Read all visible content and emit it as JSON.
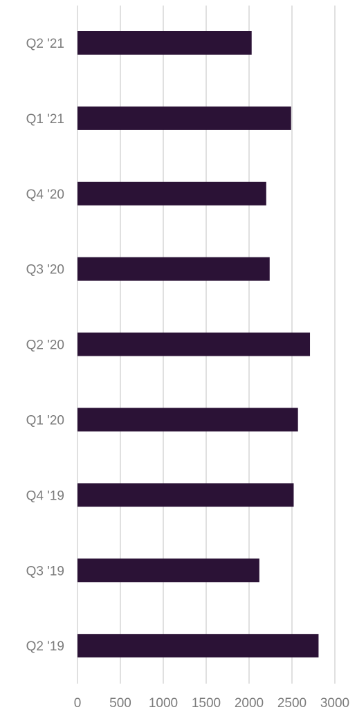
{
  "chart_data": {
    "type": "bar",
    "orientation": "horizontal",
    "categories": [
      "Q2 '21",
      "Q1 '21",
      "Q4 '20",
      "Q3 '20",
      "Q2 '20",
      "Q1 '20",
      "Q4 '19",
      "Q3 '19",
      "Q2 '19"
    ],
    "values": [
      2030,
      2490,
      2200,
      2240,
      2710,
      2570,
      2520,
      2120,
      2810
    ],
    "xlim": [
      0,
      3000
    ],
    "xticks": [
      0,
      500,
      1000,
      1500,
      2000,
      2500,
      3000
    ],
    "grid": "vertical",
    "legend": "none",
    "bar_color": "#2b1236",
    "grid_color": "#d6d6d6",
    "label_color": "#7b7b7b"
  }
}
